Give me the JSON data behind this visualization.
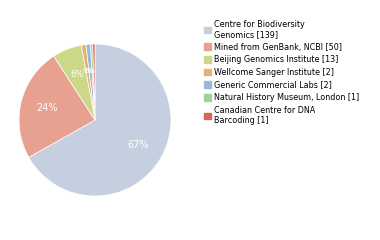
{
  "labels": [
    "Centre for Biodiversity\nGenomics [139]",
    "Mined from GenBank, NCBI [50]",
    "Beijing Genomics Institute [13]",
    "Wellcome Sanger Institute [2]",
    "Generic Commercial Labs [2]",
    "Natural History Museum, London [1]",
    "Canadian Centre for DNA\nBarcoding [1]"
  ],
  "values": [
    139,
    50,
    13,
    2,
    2,
    1,
    1
  ],
  "colors": [
    "#c5cfe0",
    "#e8a090",
    "#ccd888",
    "#e8b070",
    "#9ab8d8",
    "#9ed494",
    "#d46858"
  ],
  "figsize": [
    3.8,
    2.4
  ],
  "dpi": 100,
  "legend_fontsize": 5.8,
  "pct_fontsize_large": 7,
  "pct_fontsize_small": 6
}
